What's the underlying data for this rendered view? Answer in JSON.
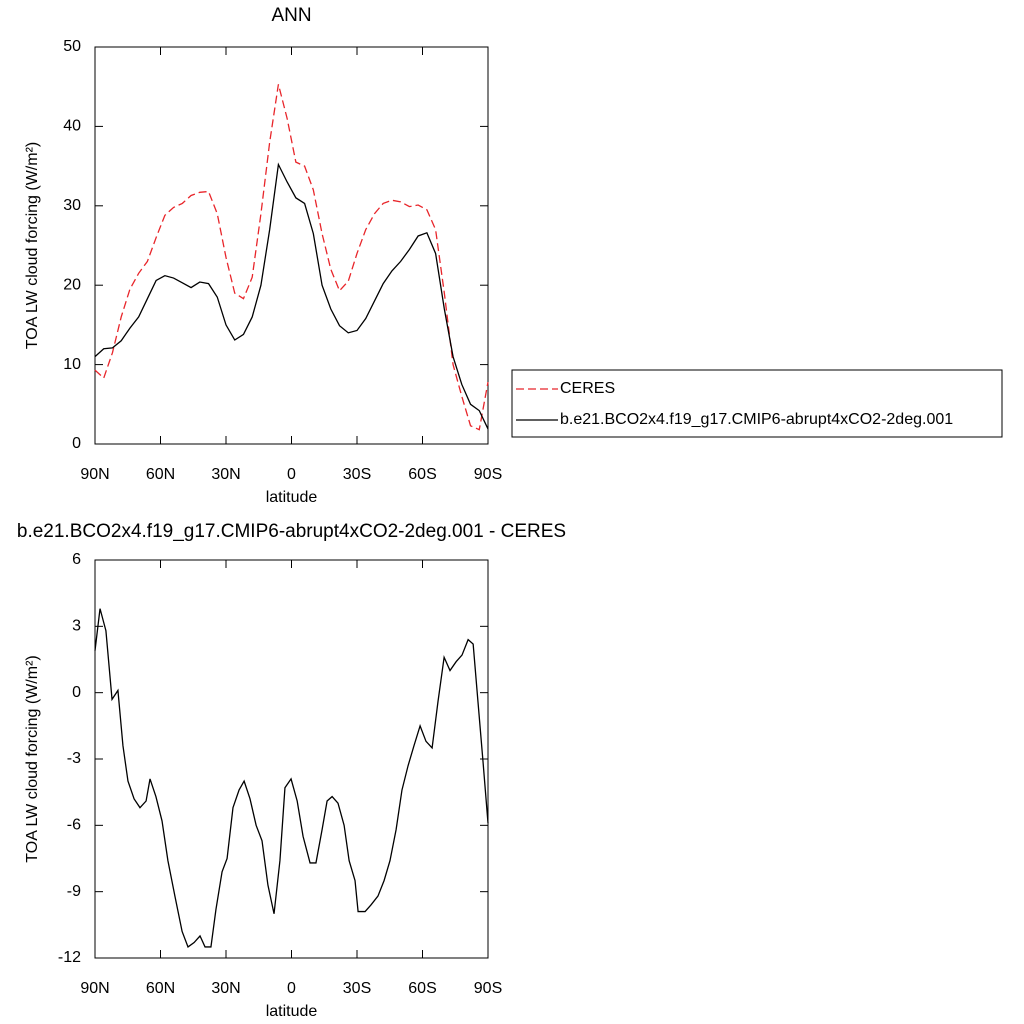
{
  "chart_data": [
    {
      "type": "line",
      "title": "ANN",
      "x_label": "latitude",
      "y_label": "TOA LW cloud forcing (W/m²)",
      "xlim": [
        90,
        -90
      ],
      "ylim": [
        0,
        50
      ],
      "xticks": [
        {
          "value": 90,
          "label": "90N"
        },
        {
          "value": 60,
          "label": "60N"
        },
        {
          "value": 30,
          "label": "30N"
        },
        0,
        {
          "value": -30,
          "label": "30S"
        },
        {
          "value": -60,
          "label": "60S"
        },
        {
          "value": -90,
          "label": "90S"
        }
      ],
      "yticks": [
        0,
        10,
        20,
        30,
        40,
        50
      ],
      "legend": "right",
      "x": [
        90,
        86,
        82,
        78,
        74,
        70,
        66,
        62,
        58,
        54,
        50,
        46,
        42,
        38,
        34,
        30,
        26,
        22,
        18,
        14,
        10,
        6,
        2,
        -2,
        -6,
        -10,
        -14,
        -18,
        -22,
        -26,
        -30,
        -34,
        -38,
        -42,
        -46,
        -50,
        -54,
        -58,
        -62,
        -66,
        -70,
        -74,
        -78,
        -82,
        -86,
        -90
      ],
      "series": [
        {
          "name": "CERES",
          "color": "#e8252a",
          "style": "dashed",
          "values": [
            9.3,
            8.3,
            11.5,
            16.0,
            19.5,
            21.5,
            23.0,
            26.0,
            28.8,
            29.8,
            30.3,
            31.3,
            31.7,
            31.8,
            29.0,
            23.5,
            19.0,
            18.3,
            21.0,
            29.0,
            38.0,
            45.3,
            41.0,
            35.5,
            35.0,
            32.0,
            26.5,
            22.0,
            19.3,
            20.5,
            24.0,
            27.0,
            29.0,
            30.3,
            30.7,
            30.5,
            29.9,
            30.1,
            29.5,
            27.0,
            19.0,
            10.0,
            6.0,
            2.3,
            1.8,
            7.8
          ]
        },
        {
          "name": "b.e21.BCO2x4.f19_g17.CMIP6-abrupt4xCO2-2deg.001",
          "color": "#000000",
          "style": "solid",
          "values": [
            11.0,
            12.0,
            12.1,
            13.0,
            14.6,
            16.0,
            18.3,
            20.6,
            21.2,
            20.9,
            20.3,
            19.7,
            20.4,
            20.2,
            18.5,
            15.0,
            13.1,
            13.8,
            16.0,
            20.0,
            27.0,
            35.2,
            33.0,
            31.0,
            30.3,
            26.5,
            20.0,
            17.0,
            14.9,
            14.0,
            14.3,
            15.8,
            18.0,
            20.2,
            21.8,
            23.0,
            24.5,
            26.2,
            26.6,
            24.0,
            17.0,
            11.0,
            7.5,
            5.0,
            4.2,
            1.9
          ]
        }
      ]
    },
    {
      "type": "line",
      "title": "b.e21.BCO2x4.f19_g17.CMIP6-abrupt4xCO2-2deg.001 - CERES",
      "x_label": "latitude",
      "y_label": "TOA LW cloud forcing (W/m²)",
      "xlim": [
        90,
        -90
      ],
      "ylim": [
        -12,
        6
      ],
      "xticks": [
        {
          "value": 90,
          "label": "90N"
        },
        {
          "value": 60,
          "label": "60N"
        },
        {
          "value": 30,
          "label": "30N"
        },
        0,
        {
          "value": -30,
          "label": "30S"
        },
        {
          "value": -60,
          "label": "60S"
        },
        {
          "value": -90,
          "label": "90S"
        }
      ],
      "yticks": [
        -12,
        -9,
        -6,
        -3,
        0,
        3,
        6
      ],
      "x": [
        90,
        87.7,
        85,
        82.2,
        79.5,
        77.2,
        74.9,
        72.1,
        69.4,
        66.6,
        64.8,
        62.1,
        59.3,
        56.6,
        53.4,
        50.1,
        47.4,
        44.6,
        41.9,
        39.6,
        36.9,
        34.6,
        31.8,
        29.5,
        26.8,
        24,
        21.7,
        19,
        16.2,
        13.5,
        10.8,
        8,
        5.3,
        3,
        0.2,
        -2.6,
        -5.3,
        -8.5,
        -11.2,
        -14,
        -16.3,
        -18.6,
        -21.3,
        -24.1,
        -26.4,
        -29.1,
        -30.5,
        -33.7,
        -36.4,
        -39.6,
        -42.4,
        -45.1,
        -47.9,
        -50.6,
        -53.4,
        -56.1,
        -58.9,
        -61.6,
        -64.4,
        -67.1,
        -69.9,
        -72.6,
        -75.4,
        -78.1,
        -80.9,
        -83.2,
        -85.4,
        -87.7,
        -90
      ],
      "series": [
        {
          "color": "#000000",
          "style": "solid",
          "values": [
            1.9,
            3.8,
            2.8,
            -0.3,
            0.1,
            -2.4,
            -4.0,
            -4.8,
            -5.2,
            -4.9,
            -3.9,
            -4.7,
            -5.8,
            -7.6,
            -9.2,
            -10.8,
            -11.5,
            -11.3,
            -11.0,
            -11.5,
            -11.5,
            -9.8,
            -8.1,
            -7.5,
            -5.2,
            -4.4,
            -4.0,
            -4.8,
            -6.0,
            -6.7,
            -8.7,
            -10.0,
            -7.6,
            -4.3,
            -3.9,
            -4.9,
            -6.5,
            -7.7,
            -7.7,
            -6.2,
            -4.9,
            -4.7,
            -5.0,
            -6.0,
            -7.6,
            -8.5,
            -9.9,
            -9.9,
            -9.6,
            -9.2,
            -8.5,
            -7.6,
            -6.2,
            -4.4,
            -3.3,
            -2.4,
            -1.5,
            -2.2,
            -2.5,
            -0.4,
            1.6,
            1.0,
            1.4,
            1.7,
            2.4,
            2.2,
            -0.4,
            -3.1,
            -5.9
          ]
        }
      ]
    }
  ]
}
